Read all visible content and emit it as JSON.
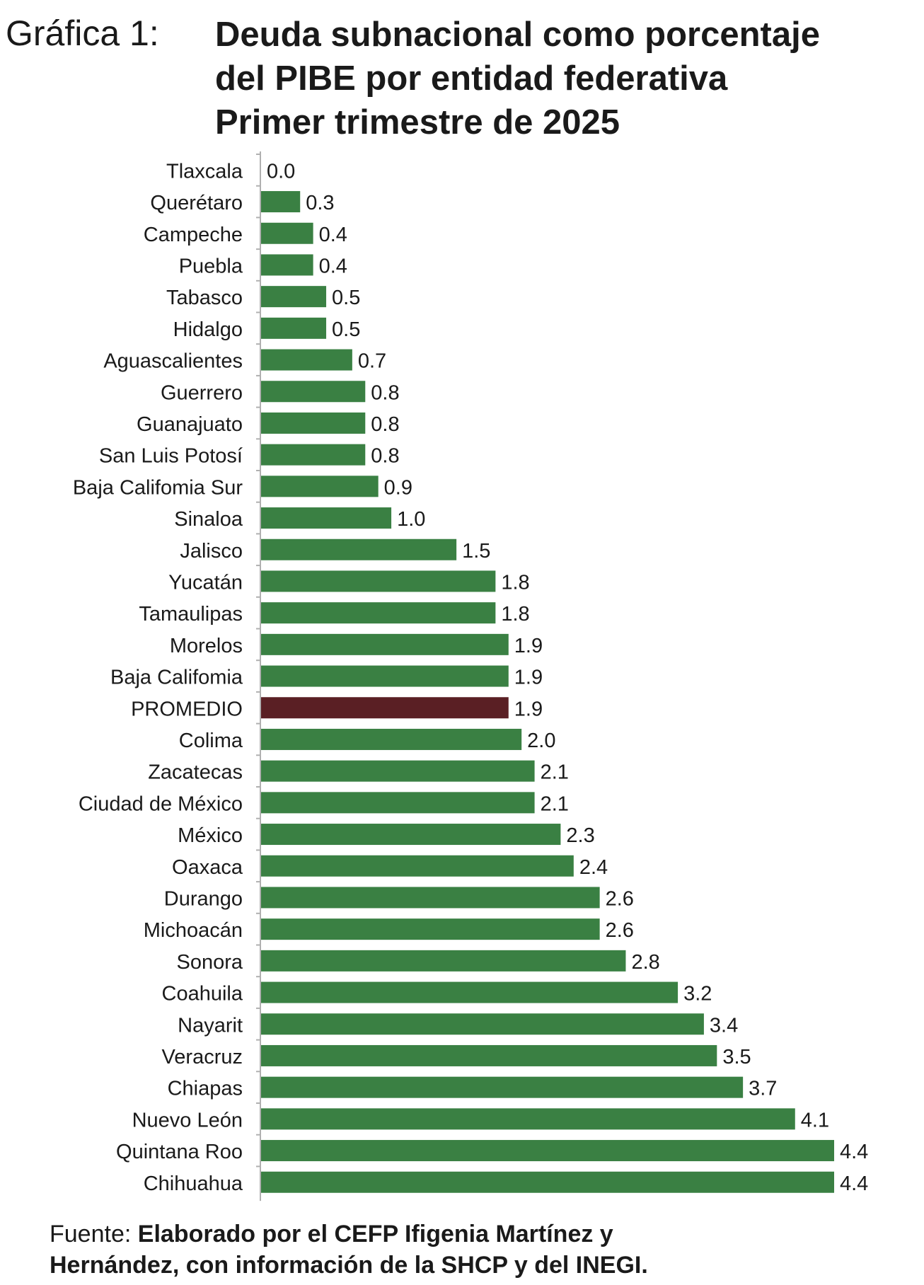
{
  "header": {
    "label": "Gráfica 1:",
    "title_lines": [
      "Deuda subnacional como porcentaje",
      "del PIBE por entidad federativa",
      "Primer trimestre de 2025"
    ]
  },
  "chart_data": {
    "type": "bar",
    "orientation": "horizontal",
    "title": "Deuda subnacional como porcentaje del PIBE por entidad federativa Primer trimestre de 2025",
    "categories": [
      "Tlaxcala",
      "Querétaro",
      "Campeche",
      "Puebla",
      "Tabasco",
      "Hidalgo",
      "Aguascalientes",
      "Guerrero",
      "Guanajuato",
      "San Luis Potosí",
      "Baja Califomia Sur",
      "Sinaloa",
      "Jalisco",
      "Yucatán",
      "Tamaulipas",
      "Morelos",
      "Baja Califomia",
      "PROMEDIO",
      "Colima",
      "Zacatecas",
      "Ciudad de México",
      "México",
      "Oaxaca",
      "Durango",
      "Michoacán",
      "Sonora",
      "Coahuila",
      "Nayarit",
      "Veracruz",
      "Chiapas",
      "Nuevo León",
      "Quintana Roo",
      "Chihuahua"
    ],
    "values": [
      0.0,
      0.3,
      0.4,
      0.4,
      0.5,
      0.5,
      0.7,
      0.8,
      0.8,
      0.8,
      0.9,
      1.0,
      1.5,
      1.8,
      1.8,
      1.9,
      1.9,
      1.9,
      2.0,
      2.1,
      2.1,
      2.3,
      2.4,
      2.6,
      2.6,
      2.8,
      3.2,
      3.4,
      3.5,
      3.7,
      4.1,
      4.4,
      4.4
    ],
    "value_labels": [
      "0.0",
      "0.3",
      "0.4",
      "0.4",
      "0.5",
      "0.5",
      "0.7",
      "0.8",
      "0.8",
      "0.8",
      "0.9",
      "1.0",
      "1.5",
      "1.8",
      "1.8",
      "1.9",
      "1.9",
      "1.9",
      "2.0",
      "2.1",
      "2.1",
      "2.3",
      "2.4",
      "2.6",
      "2.6",
      "2.8",
      "3.2",
      "3.4",
      "3.5",
      "3.7",
      "4.1",
      "4.4",
      "4.4"
    ],
    "highlight": "PROMEDIO",
    "colors": {
      "bar": "#3a8043",
      "highlight": "#5a1f24",
      "axis": "#b0b0b0"
    },
    "xlim": [
      0,
      4.4
    ],
    "grid": false,
    "legend": "none"
  },
  "source": {
    "label": "Fuente:",
    "text_line1": "Elaborado por el CEFP Ifigenia Martínez y",
    "text_line2": "Hernández, con información de la SHCP y del INEGI."
  }
}
